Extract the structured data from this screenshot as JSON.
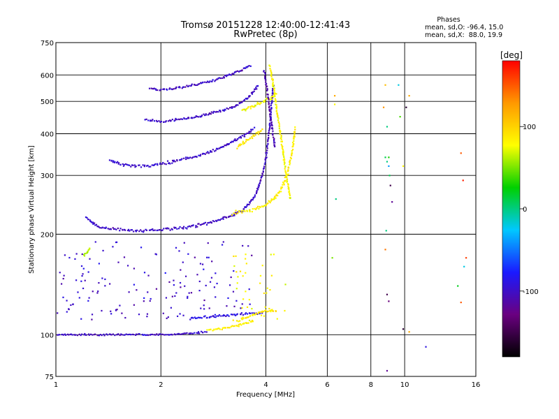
{
  "header": {
    "title_line1": "Tromsø 20151228 12:40:00-12:41:43",
    "title_line2": "RwPretec (8p)"
  },
  "phases_box": {
    "label": "Phases",
    "line_o": "mean, sd,O: -96.4, 15.0",
    "line_x": "mean, sd,X:  88.0, 19.9"
  },
  "chart_data": {
    "type": "scatter",
    "xlabel": "Frequency [MHz]",
    "ylabel": "Stationary phase Virtual Height [km]",
    "x_scale": "log",
    "y_scale": "log",
    "xlim": [
      1,
      16
    ],
    "ylim": [
      75,
      750
    ],
    "x_ticks": [
      1,
      2,
      4,
      6,
      8,
      10,
      16
    ],
    "x_tick_labels": [
      "1",
      "2",
      "4",
      "6",
      "8",
      "10",
      "16"
    ],
    "y_ticks": [
      75,
      100,
      200,
      300,
      400,
      500,
      600,
      750
    ],
    "y_tick_labels": [
      "75",
      "100",
      "200",
      "300",
      "400",
      "500",
      "600",
      "750"
    ],
    "grid": true,
    "colorbar": {
      "label": "[deg]",
      "range": [
        -180,
        180
      ],
      "ticks": [
        -100,
        0,
        100
      ],
      "tick_labels": [
        "-100",
        "0",
        "100"
      ],
      "colors": [
        "#000000",
        "#6a0080",
        "#1a1aff",
        "#00c8ff",
        "#00d000",
        "#ffff00",
        "#ff9900",
        "#ff0000"
      ]
    },
    "traces": [
      {
        "name": "",
        "kind": "band",
        "x": [
          1.22,
          1.3,
          1.4,
          1.55,
          1.7,
          1.85,
          2.0,
          2.2,
          2.4,
          2.6,
          2.8,
          3.0,
          3.2,
          3.4,
          3.55,
          3.7,
          3.8,
          3.9,
          4.0,
          4.1,
          4.2
        ],
        "y": [
          225,
          212,
          208,
          206,
          205,
          205,
          206,
          208,
          210,
          214,
          218,
          222,
          228,
          235,
          245,
          258,
          275,
          300,
          340,
          420,
          560
        ],
        "spread": 0.015,
        "phase": -100
      },
      {
        "name": "",
        "kind": "band",
        "x": [
          3.2,
          3.5,
          3.8,
          4.0,
          4.2,
          4.4,
          4.6,
          4.75,
          4.85
        ],
        "y": [
          232,
          235,
          240,
          245,
          255,
          270,
          300,
          350,
          420
        ],
        "spread": 0.02,
        "phase": 85
      },
      {
        "name": "",
        "kind": "band",
        "x": [
          1.42,
          1.55,
          1.7,
          1.9,
          2.1,
          2.3,
          2.5,
          2.7,
          2.9,
          3.1,
          3.3,
          3.5,
          3.7
        ],
        "y": [
          335,
          323,
          320,
          322,
          328,
          335,
          342,
          350,
          360,
          372,
          385,
          398,
          415
        ],
        "spread": 0.014,
        "phase": -100
      },
      {
        "name": "",
        "kind": "band",
        "x": [
          3.3,
          3.5,
          3.7,
          3.9
        ],
        "y": [
          365,
          380,
          395,
          410
        ],
        "spread": 0.02,
        "phase": 90
      },
      {
        "name": "",
        "kind": "band",
        "x": [
          1.8,
          2.0,
          2.2,
          2.4,
          2.6,
          2.8,
          3.0,
          3.2,
          3.4,
          3.6,
          3.8
        ],
        "y": [
          440,
          435,
          440,
          445,
          452,
          462,
          470,
          480,
          495,
          520,
          560
        ],
        "spread": 0.012,
        "phase": -100
      },
      {
        "name": "",
        "kind": "band",
        "x": [
          3.4,
          3.6,
          3.85,
          4.1,
          4.3
        ],
        "y": [
          470,
          480,
          495,
          510,
          530
        ],
        "spread": 0.02,
        "phase": 80
      },
      {
        "name": "",
        "kind": "band",
        "x": [
          1.85,
          2.0,
          2.2,
          2.4,
          2.6,
          2.8,
          3.0,
          3.2,
          3.4,
          3.6
        ],
        "y": [
          548,
          540,
          548,
          556,
          565,
          575,
          590,
          605,
          620,
          640
        ],
        "spread": 0.01,
        "phase": -100
      },
      {
        "name": "",
        "kind": "band",
        "x": [
          4.1,
          4.2,
          4.3,
          4.4,
          4.5,
          4.6,
          4.7
        ],
        "y": [
          640,
          560,
          470,
          400,
          340,
          290,
          255
        ],
        "spread": 0.012,
        "phase": 80
      },
      {
        "name": "",
        "kind": "band",
        "x": [
          3.95,
          4.05,
          4.15,
          4.25
        ],
        "y": [
          620,
          520,
          430,
          360
        ],
        "spread": 0.015,
        "phase": -110
      },
      {
        "name": "",
        "kind": "band",
        "x": [
          1.0,
          1.1,
          1.2,
          1.35,
          1.5,
          1.7,
          1.9,
          2.1,
          2.4,
          2.7
        ],
        "y": [
          100,
          100,
          100,
          100,
          100,
          100,
          100,
          100,
          101,
          102
        ],
        "spread": 0.008,
        "phase": -100
      },
      {
        "name": "",
        "kind": "band",
        "x": [
          2.7,
          2.9,
          3.1,
          3.3,
          3.5,
          3.7
        ],
        "y": [
          103,
          104,
          105,
          106,
          108,
          110
        ],
        "spread": 0.012,
        "phase": 85
      },
      {
        "name": "",
        "kind": "band",
        "x": [
          2.4,
          2.7,
          3.0,
          3.3,
          3.6,
          3.9
        ],
        "y": [
          112,
          113,
          114,
          115,
          116,
          116
        ],
        "spread": 0.01,
        "phase": -90
      },
      {
        "name": "",
        "kind": "band",
        "x": [
          3.3,
          3.5,
          3.7,
          3.9,
          4.1,
          4.3
        ],
        "y": [
          110,
          112,
          115,
          117,
          118,
          118
        ],
        "spread": 0.012,
        "phase": 90
      },
      {
        "name": "",
        "kind": "cloud",
        "xlim": [
          1.0,
          3.7
        ],
        "ylim": [
          110,
          190
        ],
        "n": 150,
        "phase": -100
      },
      {
        "name": "",
        "kind": "cloud",
        "xlim": [
          3.2,
          4.6
        ],
        "ylim": [
          110,
          175
        ],
        "n": 40,
        "phase": 85
      },
      {
        "name": "",
        "kind": "band",
        "x": [
          1.2,
          1.23,
          1.25
        ],
        "y": [
          172,
          177,
          182
        ],
        "spread": 0.01,
        "phase": 60
      },
      {
        "name": "",
        "kind": "points",
        "x": [
          6.3,
          6.3,
          6.35,
          8.8,
          8.9,
          9.0,
          9.05,
          9.6,
          9.7,
          8.7,
          8.8,
          8.85,
          9.1,
          9.2,
          9.9,
          10.1,
          10.3,
          11.5,
          14.5,
          14.7,
          15.0,
          14.8,
          14.2,
          14.5,
          8.8,
          8.9,
          9.0,
          8.9,
          9.9,
          10.3,
          6.2,
          8.9,
          9.0
        ],
        "y": [
          520,
          490,
          255,
          560,
          420,
          320,
          300,
          560,
          450,
          480,
          340,
          205,
          280,
          250,
          320,
          480,
          520,
          92,
          350,
          290,
          170,
          160,
          140,
          125,
          180,
          132,
          126,
          78,
          104,
          102,
          170,
          330,
          340
        ],
        "phase": [
          120,
          80,
          0,
          110,
          0,
          -40,
          10,
          -20,
          40,
          130,
          10,
          0,
          -150,
          -120,
          80,
          -160,
          120,
          -90,
          150,
          170,
          160,
          -20,
          20,
          150,
          140,
          -150,
          -130,
          -120,
          -160,
          120,
          50,
          0,
          30
        ]
      }
    ]
  }
}
